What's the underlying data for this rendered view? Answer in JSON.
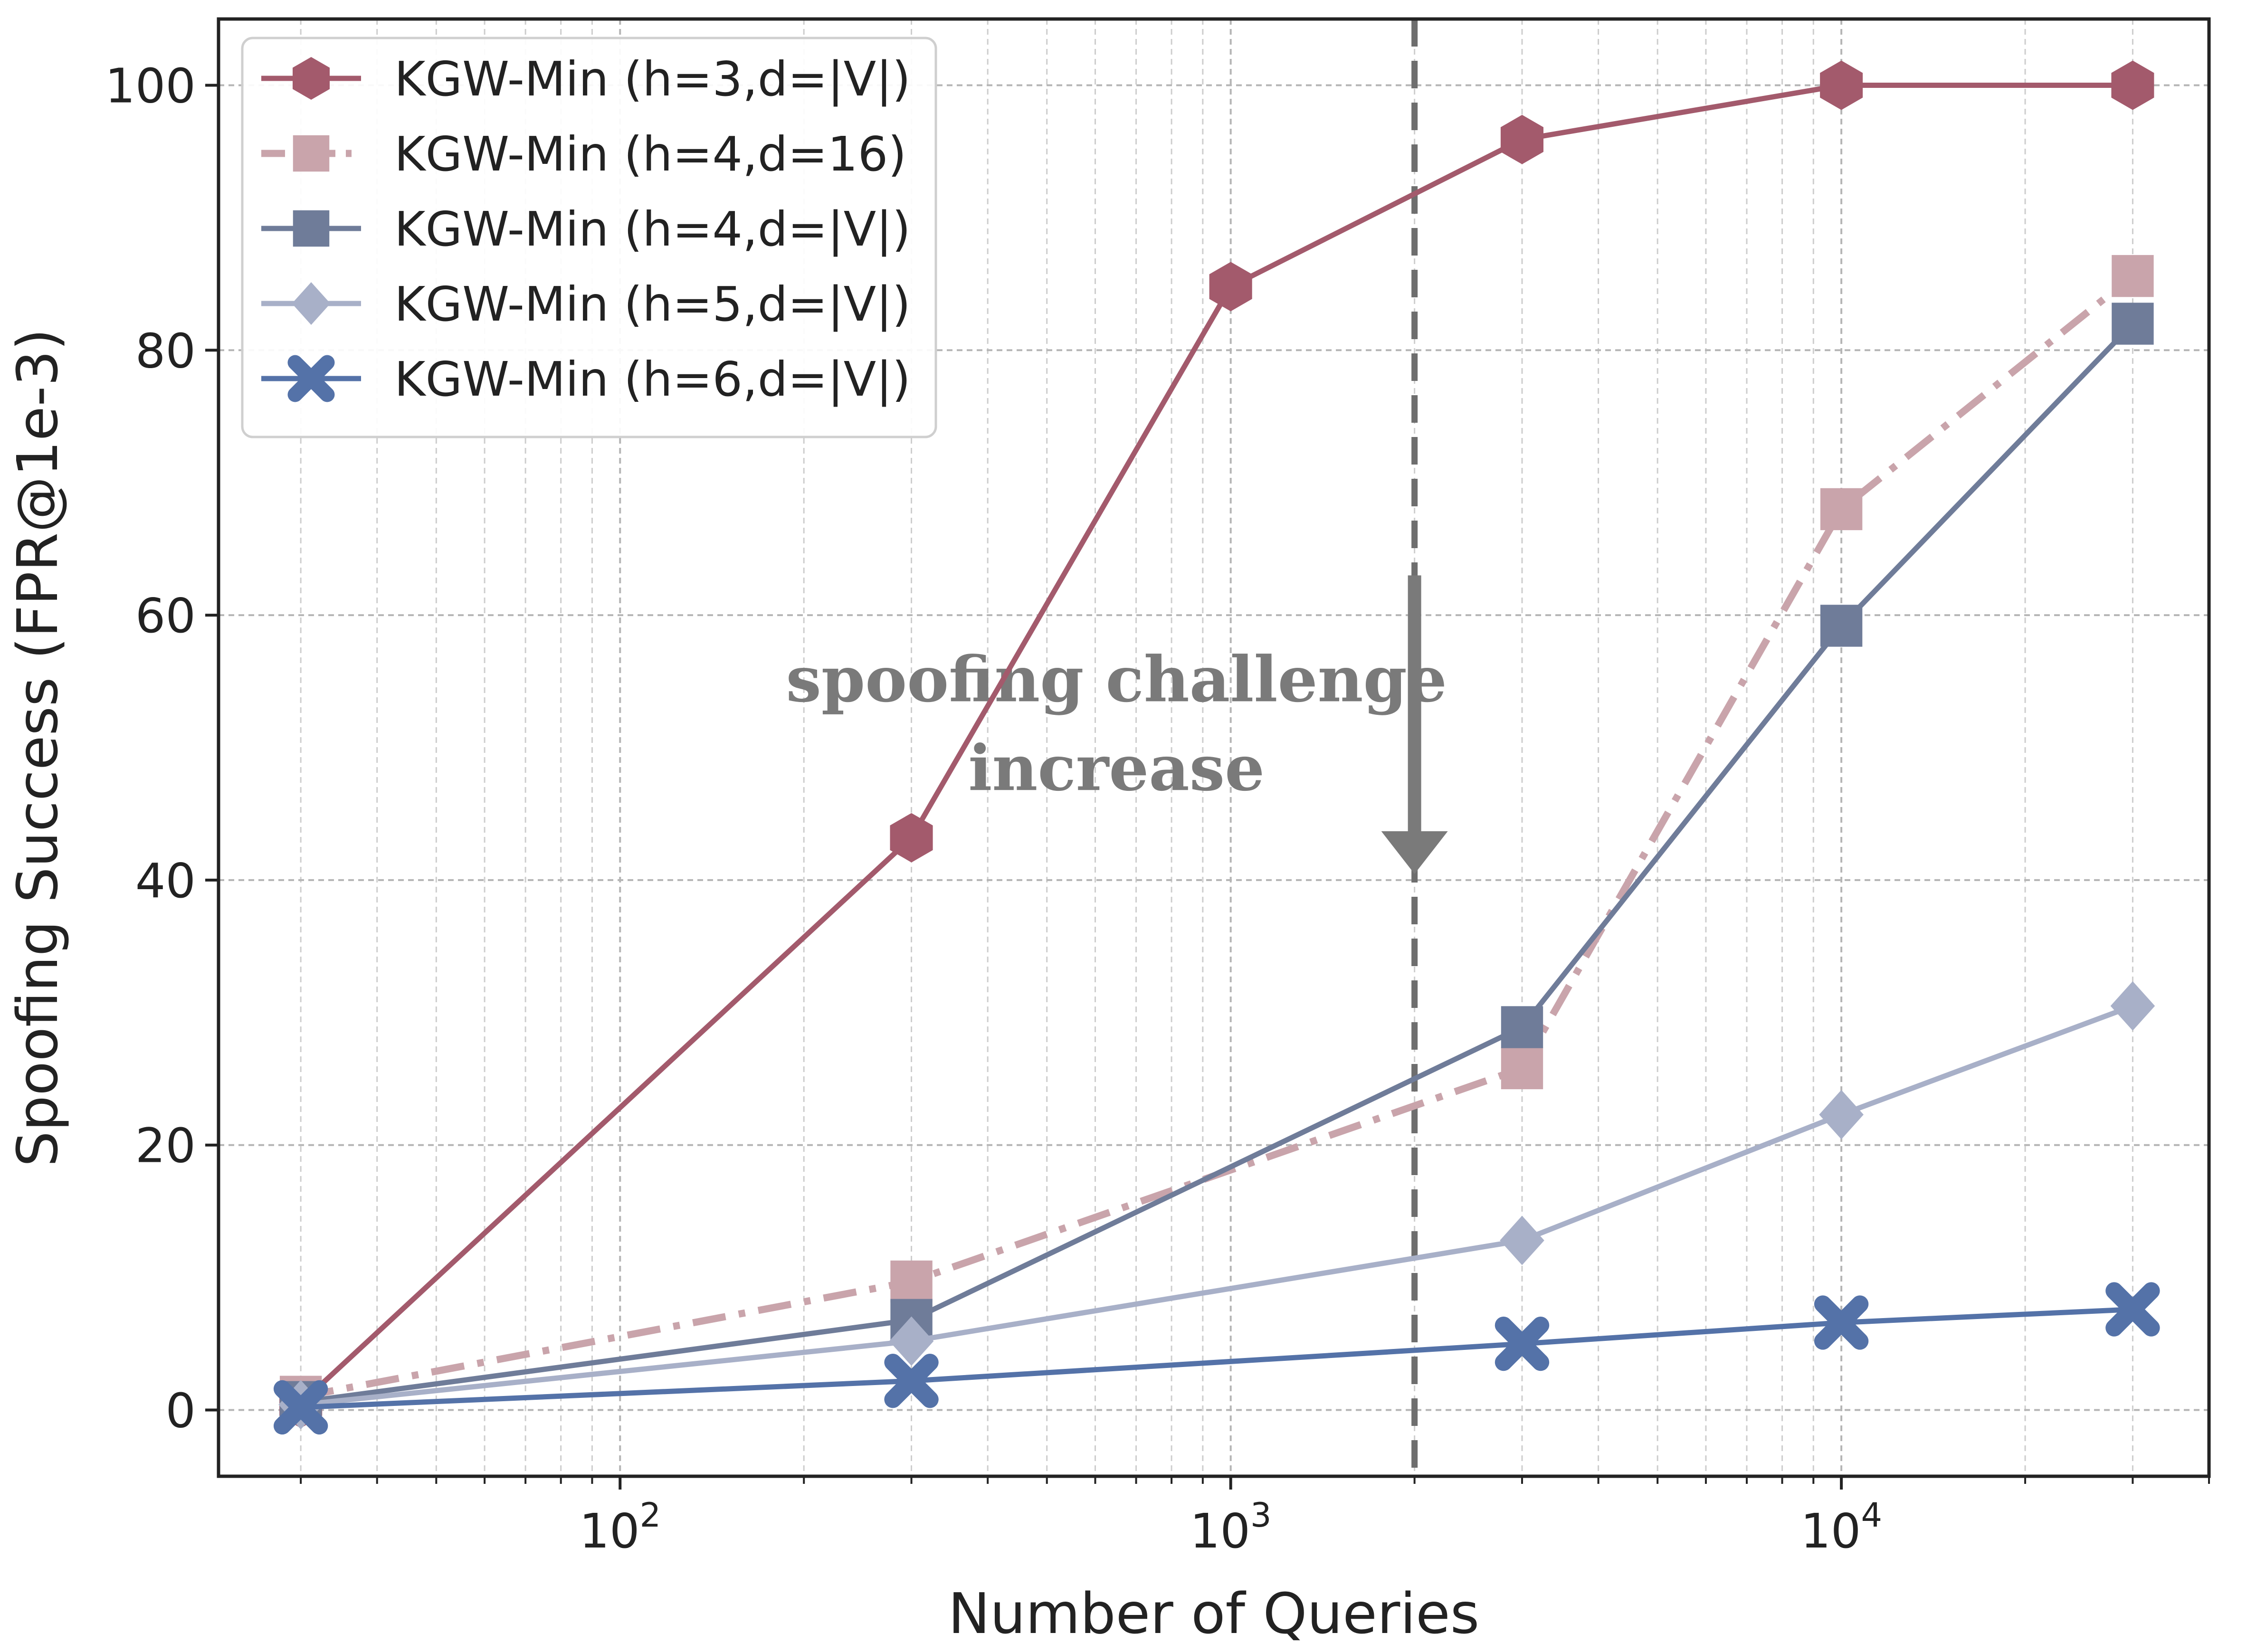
{
  "chart_data": {
    "type": "line",
    "title": "",
    "xlabel": "Number of Queries",
    "ylabel": "Spoofing Success (FPR@1e-3)",
    "xscale": "log",
    "xlim": [
      22,
      40000
    ],
    "ylim": [
      -5,
      105
    ],
    "grid": true,
    "legend_position": "top-left",
    "x_tick_labels": [
      {
        "value": 100,
        "base": "10",
        "exp": "2"
      },
      {
        "value": 1000,
        "base": "10",
        "exp": "3"
      },
      {
        "value": 10000,
        "base": "10",
        "exp": "4"
      }
    ],
    "y_ticks": [
      0,
      20,
      40,
      60,
      80,
      100
    ],
    "x": [
      30,
      300,
      3000,
      10000,
      30000
    ],
    "series": [
      {
        "name": "KGW-Min (h=3,d=|V|)",
        "x": [
          30,
          300,
          1000,
          3000,
          10000,
          30000
        ],
        "values": [
          0.5,
          43.2,
          84.8,
          95.9,
          100,
          100
        ],
        "color": "#a35a6c",
        "marker": "hexagon",
        "dash": "solid"
      },
      {
        "name": "KGW-Min (h=4,d=16)",
        "x": [
          30,
          300,
          3000,
          10000,
          30000
        ],
        "values": [
          1.0,
          9.7,
          25.8,
          68.0,
          85.6
        ],
        "color": "#c9a4ab",
        "marker": "square",
        "dash": "dashdot"
      },
      {
        "name": "KGW-Min (h=4,d=|V|)",
        "x": [
          30,
          300,
          3000,
          10000,
          30000
        ],
        "values": [
          0.6,
          6.8,
          28.9,
          59.2,
          82.0
        ],
        "color": "#6f7c99",
        "marker": "square",
        "dash": "solid"
      },
      {
        "name": "KGW-Min (h=5,d=|V|)",
        "x": [
          30,
          300,
          3000,
          10000,
          30000
        ],
        "values": [
          0.4,
          5.2,
          12.8,
          22.3,
          30.5
        ],
        "color": "#a8b0c8",
        "marker": "diamond",
        "dash": "solid"
      },
      {
        "name": "KGW-Min (h=6,d=|V|)",
        "x": [
          30,
          300,
          3000,
          10000,
          30000
        ],
        "values": [
          0.2,
          2.2,
          5.0,
          6.6,
          7.6
        ],
        "color": "#5472a8",
        "marker": "x",
        "dash": "solid"
      }
    ],
    "reference_line": {
      "x": 2000,
      "style": "dashed",
      "color": "#6e6e6e"
    },
    "annotation": {
      "lines": [
        "spoofing challenge",
        "increase"
      ],
      "arrow_x": 2000,
      "arrow_from_y": 63,
      "arrow_to_y": 41,
      "color": "#7a7a7a"
    }
  }
}
